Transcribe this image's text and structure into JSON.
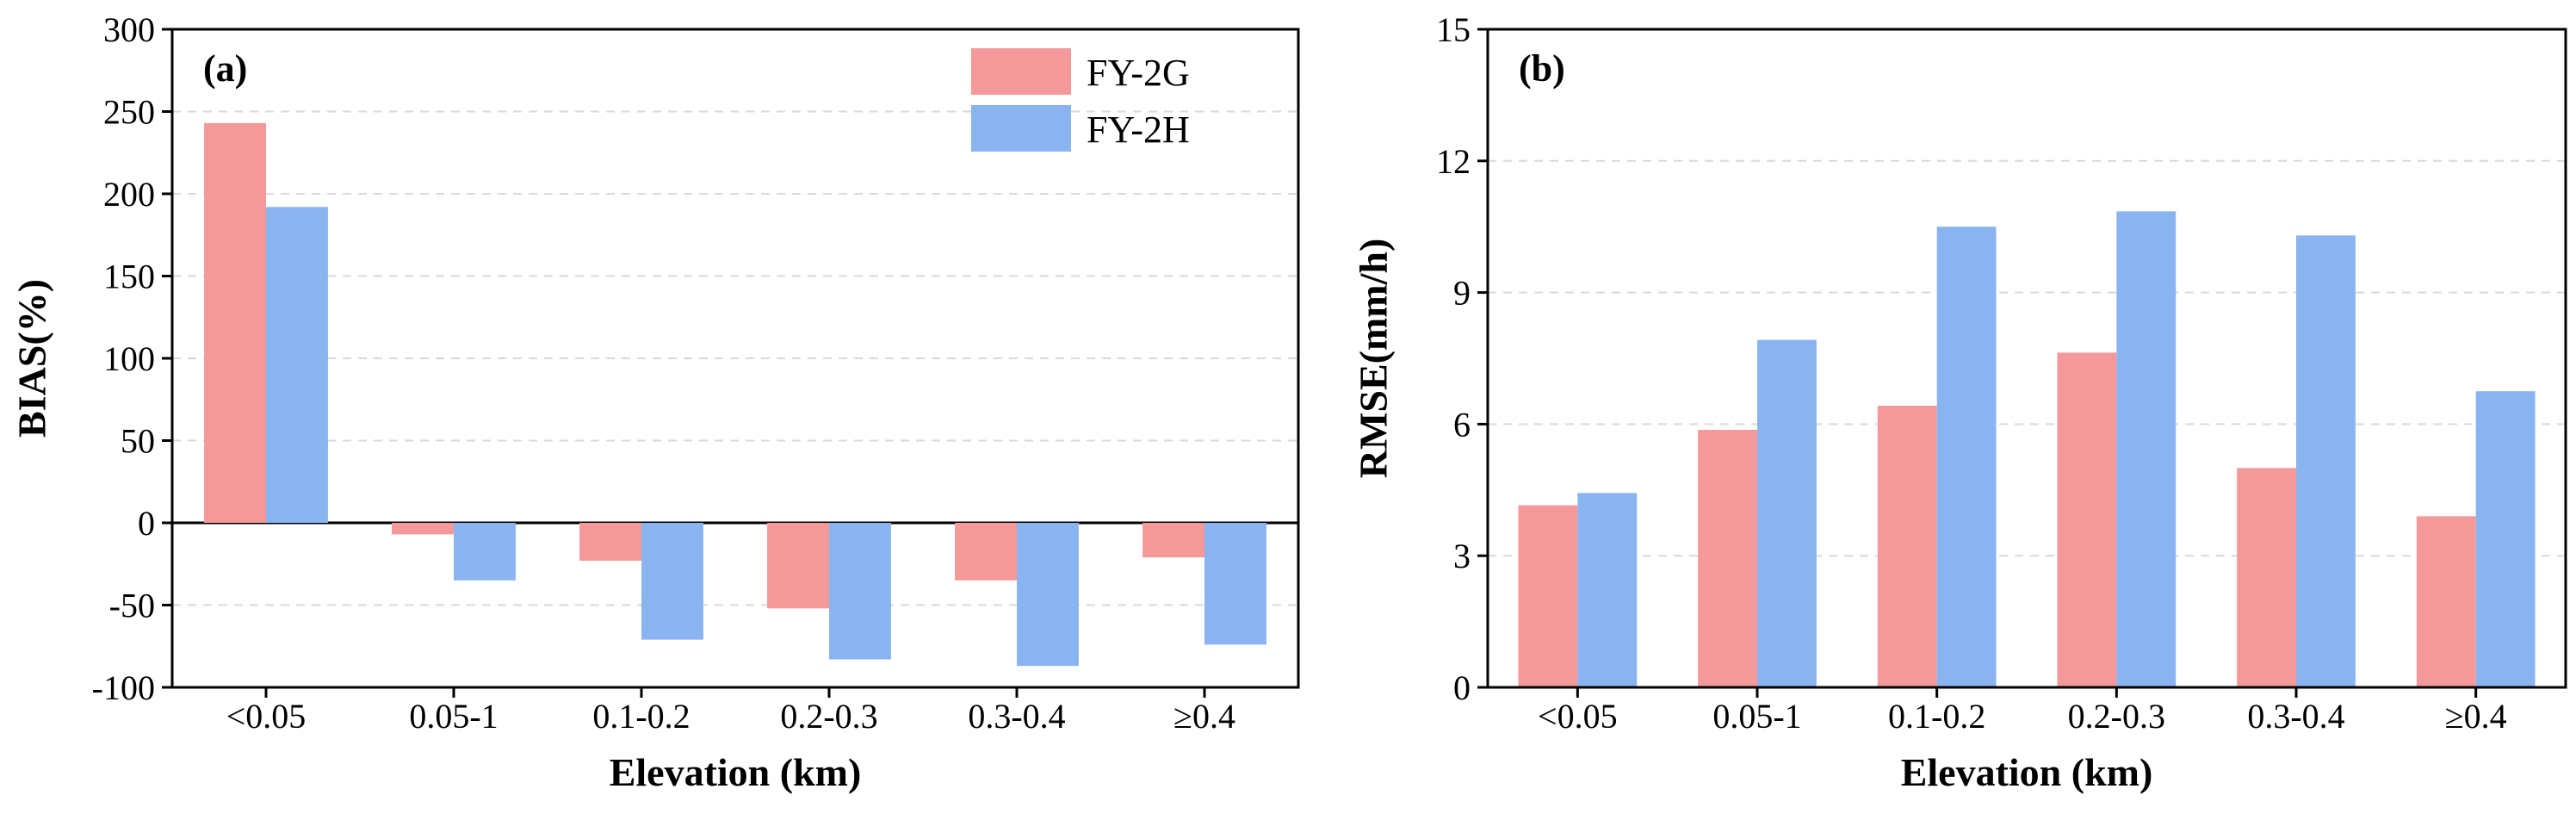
{
  "colors": {
    "fy2g": "#f4999a",
    "fy2h": "#8ab4f0",
    "grid": "#d9d9d9",
    "axis": "#000000"
  },
  "legend": {
    "fy2g": "FY-2G",
    "fy2h": "FY-2H"
  },
  "chart_data": [
    {
      "type": "bar",
      "panel_label": "(a)",
      "xlabel": "Elevation (km)",
      "ylabel": "BIAS(%)",
      "categories": [
        "<0.05",
        "0.05-1",
        "0.1-0.2",
        "0.2-0.3",
        "0.3-0.4",
        "≥0.4"
      ],
      "ylim": [
        -100,
        300
      ],
      "yticks": [
        -100,
        -50,
        0,
        50,
        100,
        150,
        200,
        250,
        300
      ],
      "ytick_labels": [
        "-100",
        "-50",
        "0",
        "50",
        "100",
        "150",
        "200",
        "250",
        "300"
      ],
      "grid": true,
      "legend_position": "top-right",
      "series": [
        {
          "name": "FY-2G",
          "values": [
            243,
            -7,
            -23,
            -52,
            -35,
            -21
          ]
        },
        {
          "name": "FY-2H",
          "values": [
            192,
            -35,
            -71,
            -83,
            -87,
            -74
          ]
        }
      ]
    },
    {
      "type": "bar",
      "panel_label": "(b)",
      "xlabel": "Elevation (km)",
      "ylabel": "RMSE(mm/h)",
      "categories": [
        "<0.05",
        "0.05-1",
        "0.1-0.2",
        "0.2-0.3",
        "0.3-0.4",
        "≥0.4"
      ],
      "ylim": [
        0,
        15
      ],
      "yticks": [
        0,
        3,
        6,
        9,
        12,
        15
      ],
      "ytick_labels": [
        "0",
        "3",
        "6",
        "9",
        "12",
        "15"
      ],
      "grid": true,
      "series": [
        {
          "name": "FY-2G",
          "values": [
            4.15,
            5.87,
            6.42,
            7.63,
            5.0,
            3.9
          ]
        },
        {
          "name": "FY-2H",
          "values": [
            4.43,
            7.92,
            10.5,
            10.85,
            10.3,
            6.75
          ]
        }
      ]
    }
  ]
}
